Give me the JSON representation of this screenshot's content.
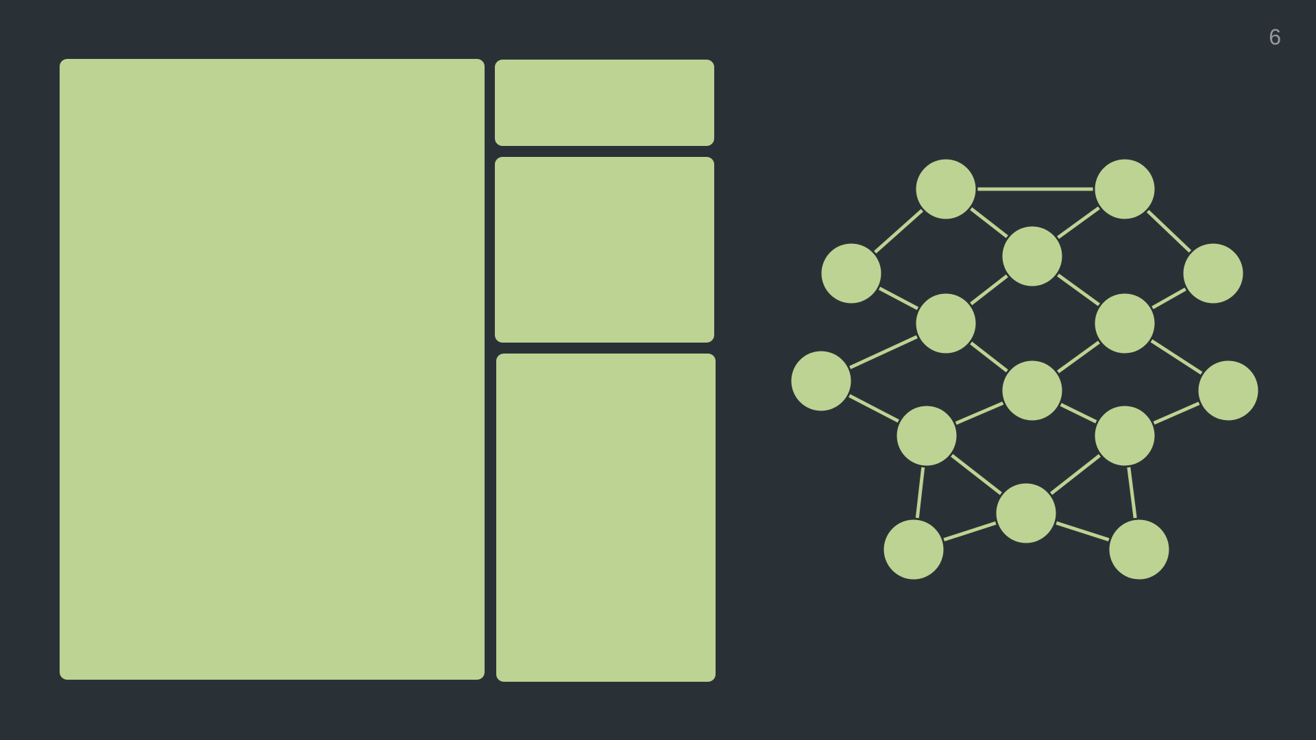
{
  "slide": {
    "page_number": "6",
    "background_color": "#2a3136",
    "accent_color": "#bdd393",
    "page_number_color": "#959a9d"
  },
  "network": {
    "nodes": [
      "n1",
      "n2",
      "n3",
      "n4",
      "n5",
      "n6",
      "n7",
      "n8",
      "n9",
      "n10",
      "n11",
      "n12",
      "n13",
      "n14",
      "n15",
      "n16"
    ],
    "edges": [
      [
        "n1",
        "n2"
      ],
      [
        "n1",
        "n3"
      ],
      [
        "n1",
        "n4"
      ],
      [
        "n2",
        "n4"
      ],
      [
        "n2",
        "n5"
      ],
      [
        "n3",
        "n6"
      ],
      [
        "n4",
        "n6"
      ],
      [
        "n4",
        "n7"
      ],
      [
        "n5",
        "n7"
      ],
      [
        "n6",
        "n8"
      ],
      [
        "n6",
        "n9"
      ],
      [
        "n7",
        "n9"
      ],
      [
        "n7",
        "n10"
      ],
      [
        "n8",
        "n11"
      ],
      [
        "n9",
        "n11"
      ],
      [
        "n9",
        "n12"
      ],
      [
        "n10",
        "n12"
      ],
      [
        "n11",
        "n13"
      ],
      [
        "n11",
        "n14"
      ],
      [
        "n12",
        "n13"
      ],
      [
        "n12",
        "n15"
      ],
      [
        "n13",
        "n14"
      ],
      [
        "n13",
        "n16"
      ],
      [
        "n15",
        "n16"
      ]
    ]
  }
}
